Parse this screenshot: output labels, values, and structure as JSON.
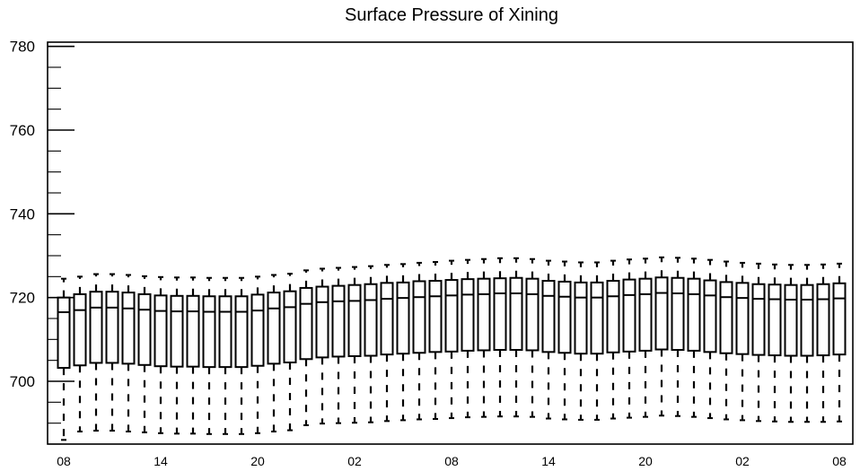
{
  "chart_data": {
    "type": "box",
    "title": "Surface Pressure of Xining",
    "xlabel": "",
    "ylabel": "",
    "ylim": [
      685,
      781
    ],
    "grid": false,
    "y_ticks_major": [
      700,
      720,
      740,
      760,
      780
    ],
    "y_tick_labels": [
      "700",
      "720",
      "740",
      "760",
      "780"
    ],
    "y_minor_step": 5,
    "x_tick_labels": [
      "08",
      "14",
      "20",
      "02",
      "08",
      "14",
      "20",
      "02",
      "08"
    ],
    "x_tick_positions": [
      0,
      6,
      12,
      18,
      24,
      30,
      36,
      42,
      48
    ],
    "whisker_style": "dashed",
    "colors": {
      "stroke": "#000000",
      "fill": "#ffffff"
    },
    "boxes": [
      {
        "x": 0,
        "min": 686.0,
        "q1": 703.2,
        "median": 716.5,
        "q3": 720.0,
        "max": 724.5
      },
      {
        "x": 1,
        "min": 688.0,
        "q1": 703.8,
        "median": 717.0,
        "q3": 720.8,
        "max": 725.0
      },
      {
        "x": 2,
        "min": 688.2,
        "q1": 704.4,
        "median": 717.6,
        "q3": 721.4,
        "max": 725.6
      },
      {
        "x": 3,
        "min": 688.2,
        "q1": 704.4,
        "median": 717.6,
        "q3": 721.4,
        "max": 725.6
      },
      {
        "x": 4,
        "min": 688.0,
        "q1": 704.2,
        "median": 717.4,
        "q3": 721.2,
        "max": 725.4
      },
      {
        "x": 5,
        "min": 687.8,
        "q1": 703.9,
        "median": 717.1,
        "q3": 720.8,
        "max": 725.1
      },
      {
        "x": 6,
        "min": 687.6,
        "q1": 703.6,
        "median": 716.8,
        "q3": 720.5,
        "max": 724.9
      },
      {
        "x": 7,
        "min": 687.5,
        "q1": 703.5,
        "median": 716.7,
        "q3": 720.4,
        "max": 724.8
      },
      {
        "x": 8,
        "min": 687.5,
        "q1": 703.5,
        "median": 716.7,
        "q3": 720.4,
        "max": 724.8
      },
      {
        "x": 9,
        "min": 687.4,
        "q1": 703.4,
        "median": 716.6,
        "q3": 720.3,
        "max": 724.7
      },
      {
        "x": 10,
        "min": 687.4,
        "q1": 703.4,
        "median": 716.6,
        "q3": 720.3,
        "max": 724.7
      },
      {
        "x": 11,
        "min": 687.4,
        "q1": 703.4,
        "median": 716.6,
        "q3": 720.3,
        "max": 724.7
      },
      {
        "x": 12,
        "min": 687.6,
        "q1": 703.7,
        "median": 716.9,
        "q3": 720.7,
        "max": 725.0
      },
      {
        "x": 13,
        "min": 688.0,
        "q1": 704.2,
        "median": 717.4,
        "q3": 721.2,
        "max": 725.4
      },
      {
        "x": 14,
        "min": 688.3,
        "q1": 704.5,
        "median": 717.7,
        "q3": 721.5,
        "max": 725.7
      },
      {
        "x": 15,
        "min": 689.5,
        "q1": 705.3,
        "median": 718.5,
        "q3": 722.3,
        "max": 726.5
      },
      {
        "x": 16,
        "min": 689.9,
        "q1": 705.7,
        "median": 718.9,
        "q3": 722.6,
        "max": 726.9
      },
      {
        "x": 17,
        "min": 690.0,
        "q1": 705.9,
        "median": 719.1,
        "q3": 722.8,
        "max": 727.1
      },
      {
        "x": 18,
        "min": 690.1,
        "q1": 706.0,
        "median": 719.2,
        "q3": 723.0,
        "max": 727.3
      },
      {
        "x": 19,
        "min": 690.2,
        "q1": 706.1,
        "median": 719.4,
        "q3": 723.2,
        "max": 727.5
      },
      {
        "x": 20,
        "min": 690.5,
        "q1": 706.4,
        "median": 719.7,
        "q3": 723.5,
        "max": 727.8
      },
      {
        "x": 21,
        "min": 690.7,
        "q1": 706.6,
        "median": 719.9,
        "q3": 723.6,
        "max": 728.0
      },
      {
        "x": 22,
        "min": 690.9,
        "q1": 706.8,
        "median": 720.1,
        "q3": 723.9,
        "max": 728.3
      },
      {
        "x": 23,
        "min": 691.0,
        "q1": 707.0,
        "median": 720.3,
        "q3": 724.0,
        "max": 728.5
      },
      {
        "x": 24,
        "min": 691.2,
        "q1": 707.1,
        "median": 720.5,
        "q3": 724.2,
        "max": 728.8
      },
      {
        "x": 25,
        "min": 691.4,
        "q1": 707.3,
        "median": 720.7,
        "q3": 724.4,
        "max": 729.0
      },
      {
        "x": 26,
        "min": 691.5,
        "q1": 707.4,
        "median": 720.8,
        "q3": 724.5,
        "max": 729.2
      },
      {
        "x": 27,
        "min": 691.6,
        "q1": 707.5,
        "median": 721.0,
        "q3": 724.6,
        "max": 729.4
      },
      {
        "x": 28,
        "min": 691.6,
        "q1": 707.5,
        "median": 721.0,
        "q3": 724.7,
        "max": 729.4
      },
      {
        "x": 29,
        "min": 691.5,
        "q1": 707.4,
        "median": 720.8,
        "q3": 724.5,
        "max": 729.2
      },
      {
        "x": 30,
        "min": 691.1,
        "q1": 707.0,
        "median": 720.4,
        "q3": 724.0,
        "max": 728.8
      },
      {
        "x": 31,
        "min": 690.9,
        "q1": 706.8,
        "median": 720.2,
        "q3": 723.8,
        "max": 728.6
      },
      {
        "x": 32,
        "min": 690.8,
        "q1": 706.6,
        "median": 720.0,
        "q3": 723.6,
        "max": 728.4
      },
      {
        "x": 33,
        "min": 690.8,
        "q1": 706.6,
        "median": 720.0,
        "q3": 723.6,
        "max": 728.4
      },
      {
        "x": 34,
        "min": 691.1,
        "q1": 706.9,
        "median": 720.3,
        "q3": 724.0,
        "max": 728.8
      },
      {
        "x": 35,
        "min": 691.3,
        "q1": 707.1,
        "median": 720.6,
        "q3": 724.3,
        "max": 729.1
      },
      {
        "x": 36,
        "min": 691.5,
        "q1": 707.3,
        "median": 720.8,
        "q3": 724.5,
        "max": 729.3
      },
      {
        "x": 37,
        "min": 691.8,
        "q1": 707.6,
        "median": 721.1,
        "q3": 724.8,
        "max": 729.6
      },
      {
        "x": 38,
        "min": 691.7,
        "q1": 707.5,
        "median": 721.0,
        "q3": 724.7,
        "max": 729.5
      },
      {
        "x": 39,
        "min": 691.5,
        "q1": 707.3,
        "median": 720.8,
        "q3": 724.5,
        "max": 729.3
      },
      {
        "x": 40,
        "min": 691.2,
        "q1": 707.0,
        "median": 720.5,
        "q3": 724.1,
        "max": 729.0
      },
      {
        "x": 41,
        "min": 690.9,
        "q1": 706.7,
        "median": 720.1,
        "q3": 723.7,
        "max": 728.6
      },
      {
        "x": 42,
        "min": 690.7,
        "q1": 706.5,
        "median": 719.9,
        "q3": 723.5,
        "max": 728.3
      },
      {
        "x": 43,
        "min": 690.5,
        "q1": 706.3,
        "median": 719.7,
        "q3": 723.2,
        "max": 728.1
      },
      {
        "x": 44,
        "min": 690.4,
        "q1": 706.2,
        "median": 719.6,
        "q3": 723.1,
        "max": 727.9
      },
      {
        "x": 45,
        "min": 690.3,
        "q1": 706.1,
        "median": 719.5,
        "q3": 723.0,
        "max": 727.8
      },
      {
        "x": 46,
        "min": 690.3,
        "q1": 706.1,
        "median": 719.5,
        "q3": 723.0,
        "max": 727.8
      },
      {
        "x": 47,
        "min": 690.3,
        "q1": 706.2,
        "median": 719.6,
        "q3": 723.2,
        "max": 727.9
      },
      {
        "x": 48,
        "min": 690.4,
        "q1": 706.4,
        "median": 719.8,
        "q3": 723.4,
        "max": 728.1
      }
    ]
  }
}
